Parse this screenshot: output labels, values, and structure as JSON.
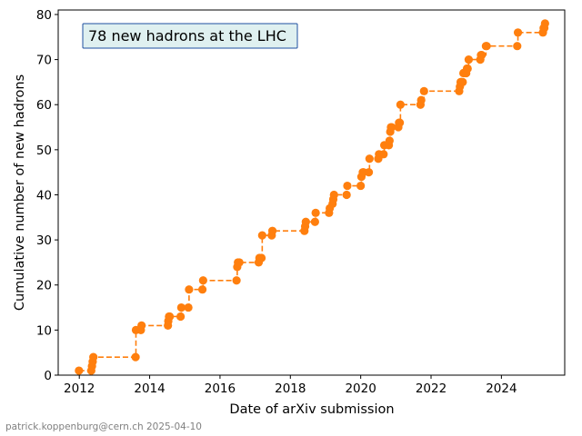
{
  "chart_data": {
    "type": "line",
    "title": "",
    "xlabel": "Date of arXiv submission",
    "ylabel": "Cumulative number of new hadrons",
    "xlim": [
      2011.4,
      2025.8
    ],
    "ylim": [
      0,
      81
    ],
    "x_ticks": [
      2012,
      2014,
      2016,
      2018,
      2020,
      2022,
      2024
    ],
    "y_ticks": [
      0,
      10,
      20,
      30,
      40,
      50,
      60,
      70,
      80
    ],
    "x_tick_labels": [
      "2012",
      "2014",
      "2016",
      "2018",
      "2020",
      "2022",
      "2024"
    ],
    "y_tick_labels": [
      "0",
      "10",
      "20",
      "30",
      "40",
      "50",
      "60",
      "70",
      "80"
    ],
    "grid": false,
    "annotation": "78 new hadrons at the LHC",
    "footer": "patrick.koppenburg@cern.ch 2025-04-10",
    "line_style": "dashed-steps",
    "color": "#ff7f0e",
    "annotation_box_fill": "#dff0f0",
    "annotation_box_edge": "#1f4fa0",
    "x": [
      2011.99,
      2012.34,
      2012.36,
      2012.38,
      2012.4,
      2013.6,
      2013.61,
      2013.75,
      2013.77,
      2014.52,
      2014.53,
      2014.55,
      2014.57,
      2014.88,
      2014.9,
      2015.1,
      2015.12,
      2015.5,
      2015.52,
      2016.47,
      2016.49,
      2016.51,
      2016.55,
      2017.1,
      2017.12,
      2017.18,
      2017.2,
      2017.47,
      2017.49,
      2018.4,
      2018.42,
      2018.44,
      2018.7,
      2018.72,
      2019.1,
      2019.12,
      2019.2,
      2019.22,
      2019.24,
      2019.6,
      2019.62,
      2020.0,
      2020.02,
      2020.06,
      2020.08,
      2020.23,
      2020.25,
      2020.5,
      2020.52,
      2020.65,
      2020.67,
      2020.8,
      2020.82,
      2020.84,
      2020.86,
      2020.88,
      2021.07,
      2021.09,
      2021.11,
      2021.13,
      2021.7,
      2021.72,
      2021.8,
      2022.8,
      2022.82,
      2022.84,
      2022.86,
      2022.9,
      2022.92,
      2023.0,
      2023.02,
      2023.04,
      2023.07,
      2023.4,
      2023.42,
      2023.44,
      2023.56,
      2023.58,
      2024.45,
      2024.47,
      2025.18,
      2025.2,
      2025.22,
      2025.24
    ],
    "y": [
      1,
      1,
      2,
      3,
      4,
      4,
      10,
      10,
      11,
      11,
      12,
      13,
      13,
      13,
      15,
      15,
      19,
      19,
      21,
      21,
      24,
      25,
      25,
      25,
      26,
      26,
      31,
      31,
      32,
      32,
      33,
      34,
      34,
      36,
      36,
      37,
      38,
      39,
      40,
      40,
      42,
      42,
      44,
      45,
      45,
      45,
      48,
      48,
      49,
      49,
      51,
      51,
      52,
      54,
      55,
      55,
      55,
      56,
      56,
      60,
      60,
      61,
      63,
      63,
      64,
      65,
      65,
      65,
      67,
      67,
      68,
      68,
      70,
      70,
      71,
      71,
      73,
      73,
      73,
      76,
      76,
      77,
      77,
      78
    ]
  }
}
